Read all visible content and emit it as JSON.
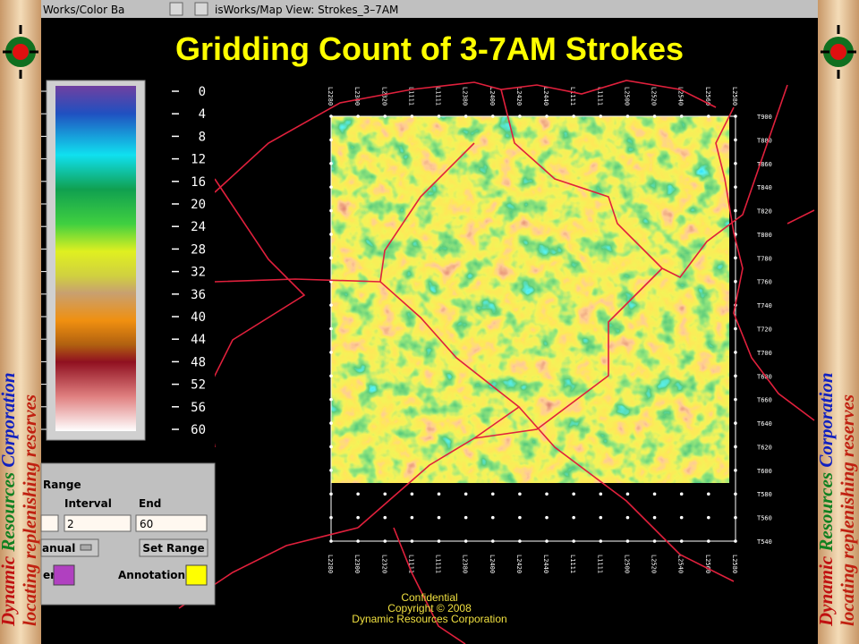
{
  "window_titles": [
    "Works/Color Ba",
    "isWorks/Map View: Strokes_3–7AM"
  ],
  "title": "Gridding Count of 3-7AM Strokes",
  "color_scale": {
    "labels": [
      0,
      4,
      8,
      12,
      16,
      20,
      24,
      28,
      32,
      36,
      40,
      44,
      48,
      52,
      56,
      60
    ]
  },
  "range_panel": {
    "heading": "Range",
    "interval_label": "Interval",
    "end_label": "End",
    "interval_value": "2",
    "end_value": "60",
    "mode": "anual",
    "button": "Set Range",
    "color_label_1": "er",
    "color_label_2": "Annotation"
  },
  "map": {
    "top_labels": [
      "L2280",
      "L2300",
      "L2320",
      "L1111",
      "L1111",
      "L2380",
      "L2400",
      "L2420",
      "L2440",
      "L1111",
      "L1111",
      "L2500",
      "L2520",
      "L2540",
      "L2560",
      "L2580"
    ],
    "bottom_labels": [
      "L2280",
      "L2300",
      "L2320",
      "L1111",
      "L1111",
      "L2380",
      "L2400",
      "L2420",
      "L2440",
      "L1111",
      "L1111",
      "L2500",
      "L2520",
      "L2540",
      "L2560",
      "L2580"
    ],
    "right_labels": [
      "T900",
      "T880",
      "T860",
      "T840",
      "T820",
      "T800",
      "T780",
      "T760",
      "T740",
      "T720",
      "T700",
      "T680",
      "T660",
      "T640",
      "T620",
      "T600",
      "T580",
      "T560",
      "T540"
    ]
  },
  "footer": {
    "line1": "Confidential",
    "line2": "Copyright © 2008",
    "line3": "Dynamic Resources Corporation"
  },
  "banner": {
    "words": [
      "Dynamic",
      "Resources",
      "Corporation"
    ],
    "tagline": "locating replenishing reserves"
  }
}
